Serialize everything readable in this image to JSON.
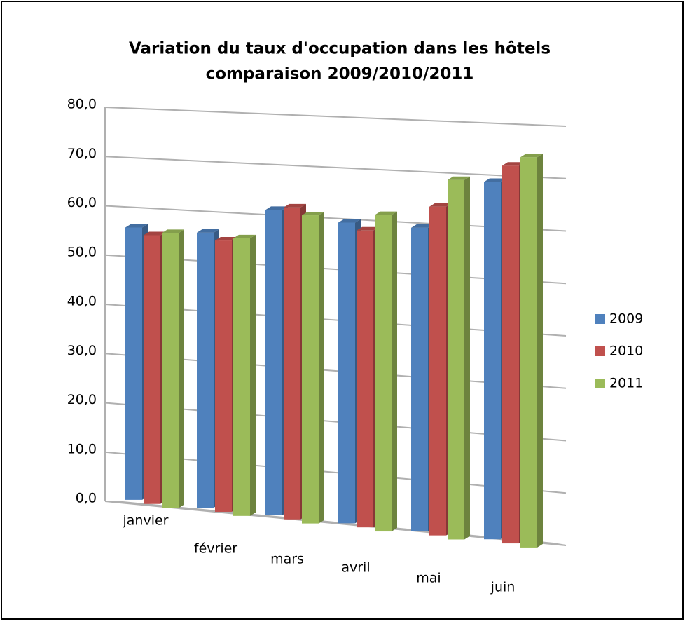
{
  "chart_data": {
    "type": "bar3d",
    "title": "Variation du taux d'occupation dans les hôtels",
    "subtitle": "comparaison 2009/2010/2011",
    "categories": [
      "janvier",
      "février",
      "mars",
      "avril",
      "mai",
      "juin"
    ],
    "series": [
      {
        "name": "2009",
        "color": "#4f81bd",
        "values": [
          55.5,
          55,
          60,
          58,
          57.5,
          66.5
        ]
      },
      {
        "name": "2010",
        "color": "#c0504d",
        "values": [
          54.5,
          54,
          61,
          57,
          62,
          70
        ]
      },
      {
        "name": "2011",
        "color": "#9bbb59",
        "values": [
          55.5,
          55,
          60,
          60.5,
          67.5,
          72
        ]
      }
    ],
    "ylim": [
      0,
      80
    ],
    "yticks": [
      {
        "value": 0,
        "label": "0,0"
      },
      {
        "value": 10,
        "label": "10,0"
      },
      {
        "value": 20,
        "label": "20,0"
      },
      {
        "value": 30,
        "label": "30,0"
      },
      {
        "value": 40,
        "label": "40,0"
      },
      {
        "value": 50,
        "label": "50,0"
      },
      {
        "value": 60,
        "label": "60,0"
      },
      {
        "value": 70,
        "label": "70,0"
      },
      {
        "value": 80,
        "label": "80,0"
      }
    ],
    "grid": true,
    "legend": "right"
  }
}
